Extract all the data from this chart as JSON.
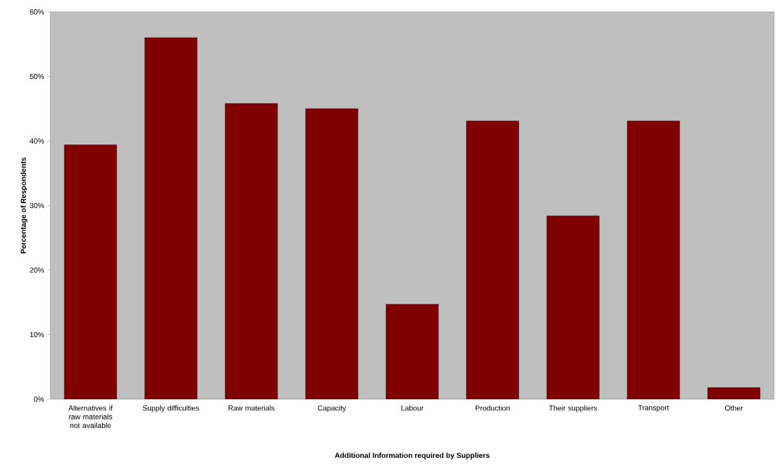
{
  "chart_data": {
    "type": "bar",
    "xlabel": "Additional Information required by Suppliers",
    "ylabel": "Percentage of Respondents",
    "categories": [
      "Alternatives if raw materials not available",
      "Supply difficulties",
      "Raw materials",
      "Capacity",
      "Labour",
      "Production",
      "Their suppliers",
      "Transport",
      "Other"
    ],
    "values": [
      39.4,
      56,
      45.8,
      45,
      14.7,
      43.1,
      28.4,
      43.1,
      1.8
    ],
    "color": "#800000",
    "ylim": [
      0,
      60
    ],
    "yticks": [
      {
        "value": 0,
        "label": "0%"
      },
      {
        "value": 10,
        "label": "10%"
      },
      {
        "value": 20,
        "label": "20%"
      },
      {
        "value": 30,
        "label": "30%"
      },
      {
        "value": 40,
        "label": "40%"
      },
      {
        "value": 50,
        "label": "50%"
      },
      {
        "value": 60,
        "label": "60%"
      }
    ],
    "grid": false
  }
}
